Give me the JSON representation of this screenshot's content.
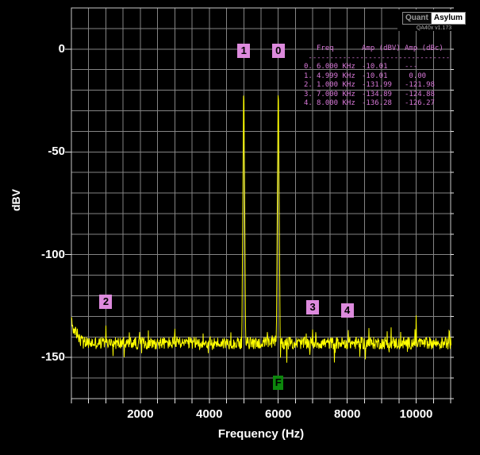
{
  "app": {
    "brand": {
      "part1": "Quant",
      "part2": "Asylum",
      "version": "QA40x v1.173"
    }
  },
  "colors": {
    "background": "#000000",
    "grid": "#858585",
    "border": "#c8c8c8",
    "tick": "#e8e8e8",
    "trace": "#ffff00",
    "axis_text": "#ffffff",
    "marker_box": "#dd8add",
    "marker_text": "#000000",
    "fundamental_box": "#0c870c",
    "table_text": "#d878d8"
  },
  "chart_data": {
    "type": "line",
    "subtype": "fft-spectrum",
    "xlabel": "Frequency (Hz)",
    "ylabel": "dBV",
    "x_range_hz": [
      0,
      11000
    ],
    "y_range_dbv": [
      -170,
      20
    ],
    "x_tick_labels": [
      2000,
      4000,
      6000,
      8000,
      10000
    ],
    "y_tick_labels": [
      0,
      -50,
      -100,
      -150
    ],
    "x_grid_step_hz": 500,
    "y_grid_step_db": 10,
    "grid": true,
    "legend": "none",
    "noise_floor_dbv": -143,
    "noise_peak_to_peak_db": 9,
    "low_freq_hump": {
      "below_hz": 350,
      "rise_db": 13
    },
    "peaks": [
      {
        "marker": "0",
        "freq_hz": 6000,
        "amp_dbv": -10.01
      },
      {
        "marker": "1",
        "freq_hz": 4999,
        "amp_dbv": -10.01
      },
      {
        "marker": "2",
        "freq_hz": 1000,
        "amp_dbv": -131.99
      },
      {
        "marker": "3",
        "freq_hz": 7000,
        "amp_dbv": -134.89
      },
      {
        "marker": "4",
        "freq_hz": 8000,
        "amp_dbv": -136.28
      },
      {
        "marker": null,
        "freq_hz": 2000,
        "amp_dbv": -137.5
      },
      {
        "marker": null,
        "freq_hz": 3000,
        "amp_dbv": -128.5
      },
      {
        "marker": null,
        "freq_hz": 4000,
        "amp_dbv": -135.0
      },
      {
        "marker": null,
        "freq_hz": 10000,
        "amp_dbv": -127.0
      },
      {
        "marker": null,
        "freq_hz": 10970,
        "amp_dbv": -126.5
      }
    ],
    "fundamental_marker": {
      "label": "F",
      "freq_hz": 6000
    }
  },
  "marker_table": {
    "headers": {
      "freq": "Freq",
      "amp_dbv": "Amp (dBV)",
      "amp_dbc": "Amp (dBc)"
    },
    "separator": "---------------------------------",
    "rows": [
      {
        "index": "0.",
        "freq": "6.000 KHz",
        "amp_dbv": "-10.01",
        "amp_dbc": "---"
      },
      {
        "index": "1.",
        "freq": "4.999 KHz",
        "amp_dbv": "-10.01",
        "amp_dbc": "0.00"
      },
      {
        "index": "2.",
        "freq": "1.000 KHz",
        "amp_dbv": "-131.99",
        "amp_dbc": "-121.98"
      },
      {
        "index": "3.",
        "freq": "7.000 KHz",
        "amp_dbv": "-134.89",
        "amp_dbc": "-124.88"
      },
      {
        "index": "4.",
        "freq": "8.000 KHz",
        "amp_dbv": "-136.28",
        "amp_dbc": "-126.27"
      }
    ]
  }
}
